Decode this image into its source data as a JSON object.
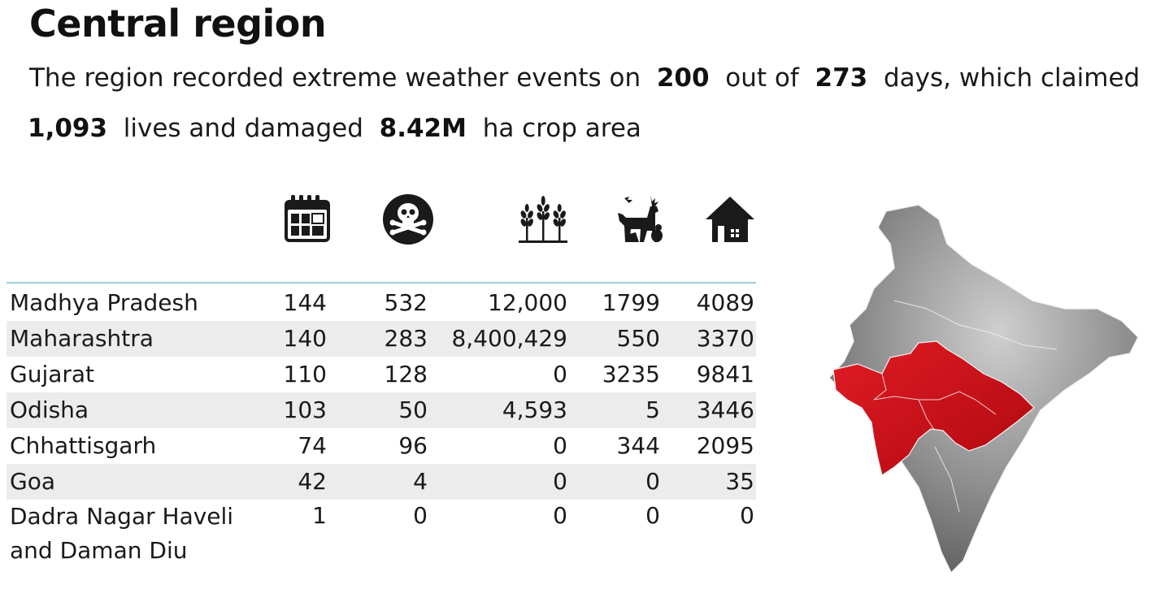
{
  "title": "Central region",
  "summary": {
    "part1": "The region recorded extreme weather events on",
    "days_with_events": "200",
    "part2": "out of",
    "total_days": "273",
    "part3": "days, which claimed",
    "lives": "1,093",
    "part4": "lives and damaged",
    "crop_area": "8.42M",
    "part5": "ha crop area"
  },
  "icons": [
    {
      "name": "calendar-icon",
      "meaning": "days"
    },
    {
      "name": "skull-crossbones-icon",
      "meaning": "deaths"
    },
    {
      "name": "crops-icon",
      "meaning": "crop area"
    },
    {
      "name": "animals-icon",
      "meaning": "animal deaths"
    },
    {
      "name": "house-icon",
      "meaning": "houses"
    }
  ],
  "rows": [
    {
      "state": "Madhya Pradesh",
      "days": "144",
      "deaths": "532",
      "crop": "12,000",
      "animals": "1799",
      "houses": "4089"
    },
    {
      "state": "Maharashtra",
      "days": "140",
      "deaths": "283",
      "crop": "8,400,429",
      "animals": "550",
      "houses": "3370"
    },
    {
      "state": "Gujarat",
      "days": "110",
      "deaths": "128",
      "crop": "0",
      "animals": "3235",
      "houses": "9841"
    },
    {
      "state": "Odisha",
      "days": "103",
      "deaths": "50",
      "crop": "4,593",
      "animals": "5",
      "houses": "3446"
    },
    {
      "state": "Chhattisgarh",
      "days": "74",
      "deaths": "96",
      "crop": "0",
      "animals": "344",
      "houses": "2095"
    },
    {
      "state": "Goa",
      "days": "42",
      "deaths": "4",
      "crop": "0",
      "animals": "0",
      "houses": "35"
    },
    {
      "state": "Dadra Nagar Haveli and Daman Diu",
      "days": "1",
      "deaths": "0",
      "crop": "0",
      "animals": "0",
      "houses": "0"
    }
  ],
  "colors": {
    "highlight_region": "#d0101a",
    "map_gray": "#9a9a9a",
    "row_shade": "#ececec",
    "divider": "#9ecfd8"
  }
}
